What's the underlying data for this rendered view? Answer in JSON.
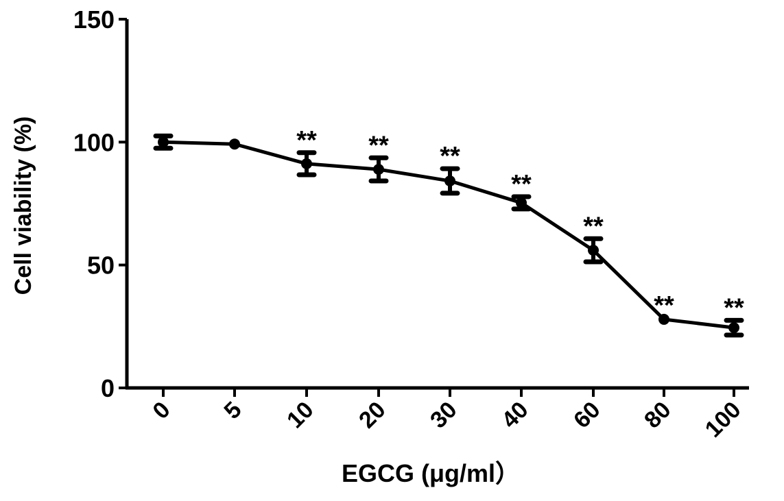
{
  "chart_data": {
    "type": "line",
    "title": "",
    "xlabel": "EGCG (μg/ml）",
    "ylabel": "Cell viability (%)",
    "categories": [
      "0",
      "5",
      "10",
      "20",
      "30",
      "40",
      "60",
      "80",
      "100"
    ],
    "ylim": [
      0,
      150
    ],
    "yticks": [
      0,
      50,
      100,
      150
    ],
    "grid": false,
    "series": [
      {
        "name": "Cell viability",
        "values": [
          100,
          99.2,
          91.2,
          88.9,
          84.2,
          75.3,
          56.0,
          27.9,
          24.5
        ],
        "errors": [
          2.5,
          0.5,
          4.5,
          4.7,
          5.0,
          2.5,
          4.7,
          0.5,
          3.0
        ],
        "annotations": [
          "",
          "",
          "**",
          "**",
          "**",
          "**",
          "**",
          "**",
          "**"
        ]
      }
    ],
    "color": "#000000"
  }
}
